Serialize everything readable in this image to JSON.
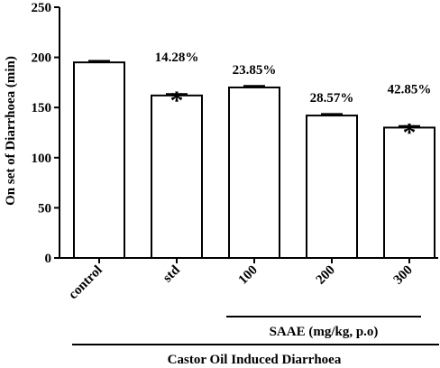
{
  "chart_data": {
    "type": "bar",
    "title": "",
    "ylabel": "On set of Diarrhoea (min)",
    "xlabel": "Castor Oil Induced Diarrhoea",
    "ylim": [
      0,
      250
    ],
    "yticks": [
      0,
      50,
      100,
      150,
      200,
      250
    ],
    "ytick_labels": [
      "0",
      "50",
      "100",
      "150",
      "200",
      "250"
    ],
    "categories": [
      "control",
      "std",
      "100",
      "200",
      "300"
    ],
    "values": [
      195,
      162,
      170,
      142,
      130
    ],
    "errors": [
      1.5,
      1.5,
      1.5,
      1.5,
      1.5
    ],
    "annotations": [
      "",
      "14.28%",
      "23.85%",
      "28.57%",
      "42.85%"
    ],
    "significance": [
      "",
      "*",
      "",
      "",
      "*"
    ],
    "group_label": "SAAE (mg/kg, p.o)",
    "group_categories": [
      "100",
      "200",
      "300"
    ],
    "grid": false,
    "bar_fill": "#ffffff",
    "bar_stroke": "#000000"
  }
}
